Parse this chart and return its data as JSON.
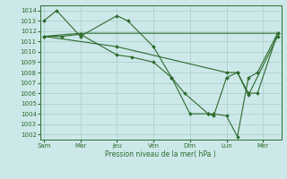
{
  "background_color": "#cce8e8",
  "grid_color": "#aacccc",
  "line_color": "#2d6b2d",
  "marker_color": "#2d6b2d",
  "xlabel_text": "Pression niveau de la mer( hPa )",
  "ylim": [
    1001.5,
    1014.5
  ],
  "yticks": [
    1002,
    1003,
    1004,
    1005,
    1006,
    1007,
    1008,
    1009,
    1010,
    1011,
    1012,
    1013,
    1014
  ],
  "xtick_labels": [
    "Sam",
    "Mar",
    "Jeu",
    "Ven",
    "Dim",
    "Lun",
    "Mer"
  ],
  "xtick_positions": [
    0,
    1,
    2,
    3,
    4,
    5,
    6
  ],
  "xlim": [
    -0.1,
    6.5
  ],
  "series": [
    {
      "comment": "main line: Sam->peak->Mar->Jeu->Ven->Dim->min->Lun->Mer",
      "x": [
        0.0,
        0.35,
        1.0,
        2.0,
        2.3,
        3.0,
        3.5,
        3.85,
        4.5,
        4.65,
        5.0,
        5.3,
        5.6,
        5.85,
        6.4
      ],
      "y": [
        1013.0,
        1014.0,
        1011.5,
        1013.5,
        1013.0,
        1010.5,
        1007.5,
        1006.0,
        1004.0,
        1004.0,
        1003.8,
        1001.8,
        1007.5,
        1008.0,
        1011.8
      ],
      "has_markers": true
    },
    {
      "x": [
        0.0,
        0.5,
        1.0,
        2.0,
        2.4,
        3.0,
        3.5,
        4.0,
        4.5,
        4.65,
        5.0,
        5.3,
        5.6,
        6.4
      ],
      "y": [
        1011.5,
        1011.5,
        1011.7,
        1009.7,
        1009.5,
        1009.0,
        1007.5,
        1004.0,
        1004.0,
        1003.8,
        1007.5,
        1008.0,
        1005.8,
        1011.5
      ],
      "has_markers": true
    },
    {
      "x": [
        0.0,
        1.0,
        6.4
      ],
      "y": [
        1011.5,
        1011.8,
        1011.8
      ],
      "has_markers": false
    },
    {
      "x": [
        0.0,
        2.0,
        5.0,
        5.3,
        5.6,
        5.85,
        6.4
      ],
      "y": [
        1011.5,
        1010.5,
        1008.0,
        1008.0,
        1006.0,
        1006.0,
        1011.8
      ],
      "has_markers": true
    }
  ]
}
